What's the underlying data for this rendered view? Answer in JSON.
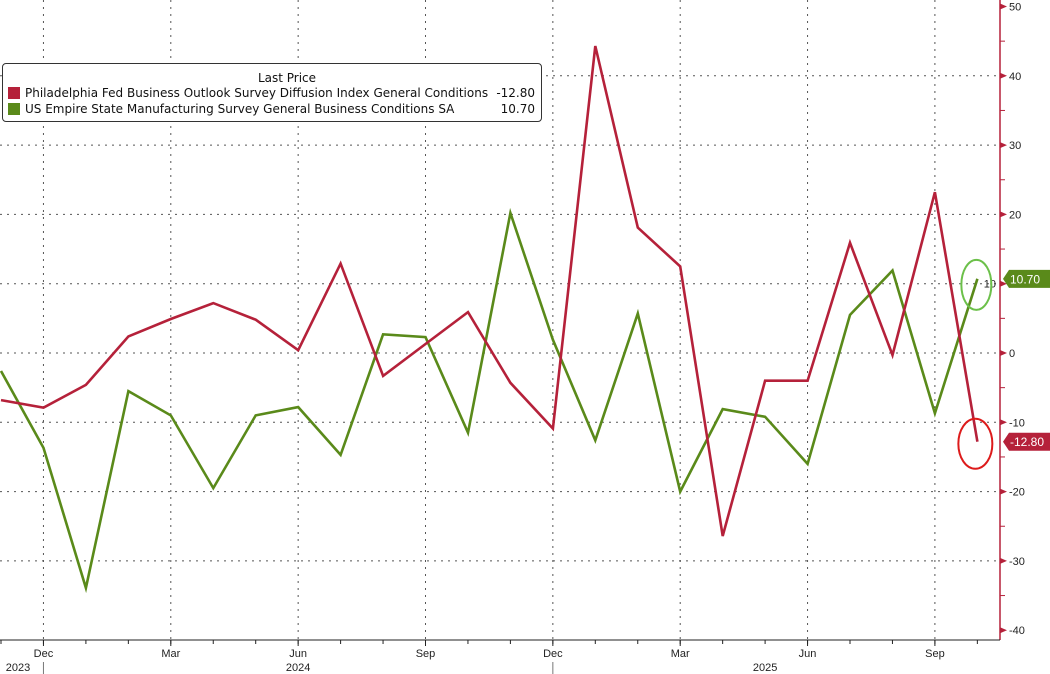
{
  "chart_data": {
    "type": "line",
    "title": "",
    "x": [
      "Nov 2023",
      "Dec 2023",
      "Jan 2024",
      "Feb 2024",
      "Mar 2024",
      "Apr 2024",
      "May 2024",
      "Jun 2024",
      "Jul 2024",
      "Aug 2024",
      "Sep 2024",
      "Oct 2024",
      "Nov 2024",
      "Dec 2024",
      "Jan 2025",
      "Feb 2025",
      "Mar 2025",
      "Apr 2025",
      "May 2025",
      "Jun 2025",
      "Jul 2025",
      "Aug 2025",
      "Sep 2025",
      "Oct 2025"
    ],
    "series": [
      {
        "name": "Philadelphia Fed Business Outlook Survey Diffusion Index General Conditions",
        "last": "-12.80",
        "color": "#b5213a",
        "values": [
          -6.8,
          -7.9,
          -4.6,
          2.4,
          4.9,
          7.2,
          4.8,
          0.4,
          12.9,
          -3.3,
          1.3,
          5.9,
          -4.3,
          -10.9,
          44.3,
          18.1,
          12.5,
          -26.4,
          -4.0,
          -4.0,
          15.9,
          -0.3,
          23.2,
          -12.8
        ]
      },
      {
        "name": "US Empire State Manufacturing Survey General Business Conditions SA",
        "last": "10.70",
        "color": "#5a8a1a",
        "values": [
          -2.6,
          -13.7,
          -33.9,
          -5.5,
          -9.0,
          -19.5,
          -9.0,
          -7.8,
          -14.7,
          2.7,
          2.3,
          -11.5,
          20.2,
          1.9,
          -12.6,
          5.7,
          -20.0,
          -8.1,
          -9.2,
          -16.0,
          5.5,
          11.9,
          -8.7,
          10.7
        ]
      }
    ],
    "legend_header": "Last Price",
    "legend_placement": "top-left",
    "ylim": [
      -40,
      50
    ],
    "yticks": [
      "50",
      "40",
      "30",
      "20",
      "10",
      "0",
      "-10",
      "-20",
      "-30",
      "-40"
    ],
    "xticks": [
      {
        "label": "Dec",
        "index": 1
      },
      {
        "label": "Mar",
        "index": 4
      },
      {
        "label": "Jun",
        "index": 7
      },
      {
        "label": "Sep",
        "index": 10
      },
      {
        "label": "Dec",
        "index": 13
      },
      {
        "label": "Mar",
        "index": 16
      },
      {
        "label": "Jun",
        "index": 19
      },
      {
        "label": "Sep",
        "index": 22
      }
    ],
    "years": [
      {
        "label": "2023",
        "index": -0.1
      },
      {
        "label": "2024",
        "index": 7
      },
      {
        "label": "2025",
        "index": 18
      }
    ],
    "grid": true,
    "last_value_labels": [
      "-12.80",
      "10.70"
    ]
  }
}
